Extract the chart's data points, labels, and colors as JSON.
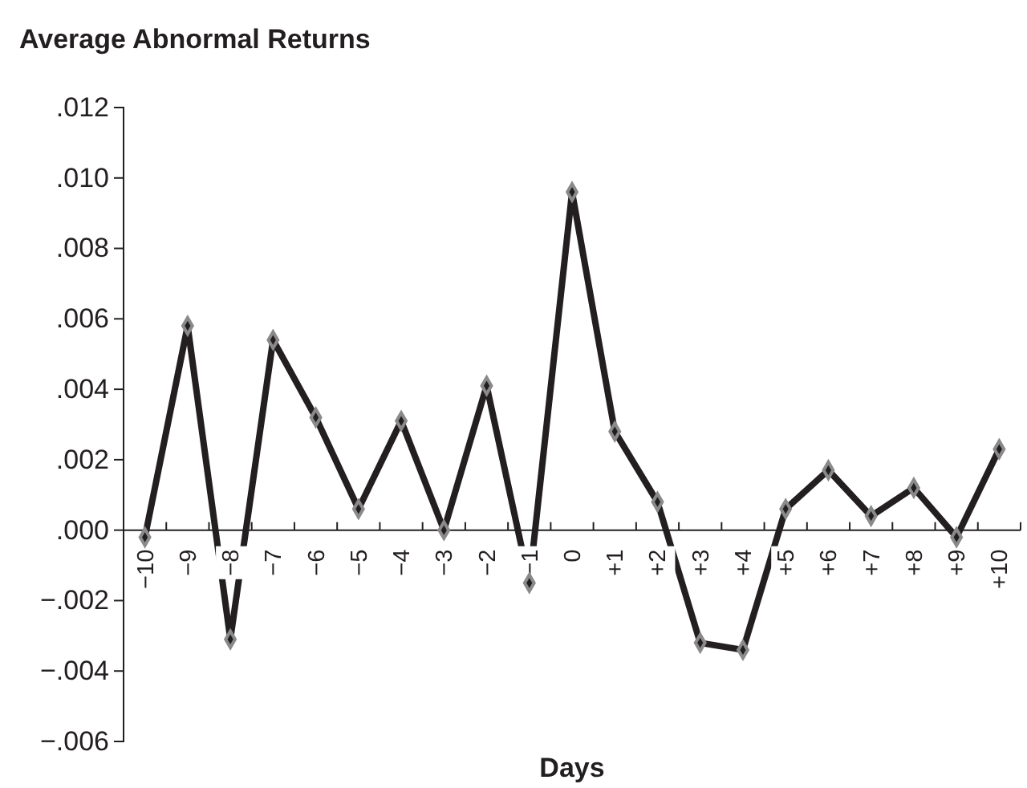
{
  "chart_data": {
    "type": "line",
    "title": "Average Abnormal Returns",
    "xlabel": "Days",
    "categories": [
      "−10",
      "−9",
      "−8",
      "−7",
      "−6",
      "−5",
      "−4",
      "−3",
      "−2",
      "−1",
      "0",
      "+1",
      "+2",
      "+3",
      "+4",
      "+5",
      "+6",
      "+7",
      "+8",
      "+9",
      "+10"
    ],
    "series": [
      {
        "color": "#231f20",
        "values": [
          -0.0002,
          0.0058,
          -0.0031,
          0.0054,
          0.0032,
          0.0006,
          0.0031,
          0.0,
          0.0041,
          -0.0015,
          0.0096,
          0.0028,
          0.0008,
          -0.0032,
          -0.0034,
          0.0006,
          0.0017,
          0.0004,
          0.0012,
          -0.0002,
          0.0023
        ]
      }
    ],
    "ylim": [
      -0.006,
      0.012
    ],
    "yticks": [
      {
        "value": -0.006,
        "label": "−.006"
      },
      {
        "value": -0.004,
        "label": "−.004"
      },
      {
        "value": -0.002,
        "label": "−.002"
      },
      {
        "value": 0,
        "label": ".000"
      },
      {
        "value": 0.002,
        "label": ".002"
      },
      {
        "value": 0.004,
        "label": ".004"
      },
      {
        "value": 0.006,
        "label": ".006"
      },
      {
        "value": 0.008,
        "label": ".008"
      },
      {
        "value": 0.01,
        "label": ".010"
      },
      {
        "value": 0.012,
        "label": ".012"
      }
    ],
    "marker": "diamond",
    "line_style": "solid",
    "grid": false,
    "legend": false
  }
}
